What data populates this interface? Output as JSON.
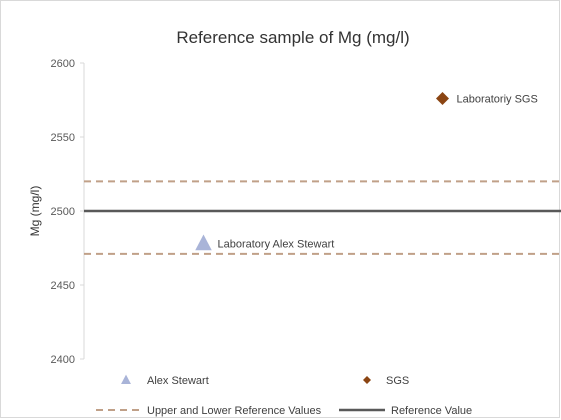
{
  "chart_data": {
    "type": "scatter",
    "title": "Reference sample of Mg (mg/l)",
    "ylabel": "Mg (mg/l)",
    "xlabel": "",
    "ylim": [
      2400,
      2600
    ],
    "yticks": [
      2400,
      2450,
      2500,
      2550,
      2600
    ],
    "grid": false,
    "legend_position": "bottom",
    "series": [
      {
        "name": "Alex Stewart",
        "marker": "triangle",
        "color": "#a9b4d8",
        "x": 1,
        "y": 2478,
        "label": "Laboratory Alex Stewart"
      },
      {
        "name": "SGS",
        "marker": "diamond",
        "color": "#8b4513",
        "x": 3,
        "y": 2576,
        "label": "Laboratoriy SGS"
      }
    ],
    "xlim": [
      0,
      4
    ],
    "reference_value": {
      "name": "Reference Value",
      "y": 2500,
      "color": "#595959"
    },
    "reference_bounds": {
      "name": "Upper and Lower Reference Values",
      "upper": 2520,
      "lower": 2471,
      "color": "#c0a088"
    }
  }
}
